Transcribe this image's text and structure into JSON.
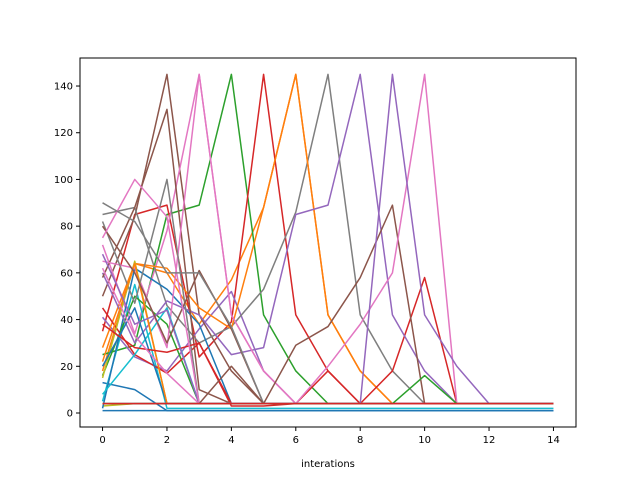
{
  "chart_data": {
    "type": "line",
    "title": "",
    "xlabel": "interations",
    "ylabel": "",
    "xlim": [
      -0.7,
      14.7
    ],
    "ylim": [
      -6,
      152
    ],
    "xticks": [
      0,
      2,
      4,
      6,
      8,
      10,
      12,
      14
    ],
    "yticks": [
      0,
      20,
      40,
      60,
      80,
      100,
      120,
      140
    ],
    "grid": false,
    "legend": "none",
    "series": [
      {
        "color": "#1f77b4",
        "x": [
          0,
          1,
          2,
          3,
          4,
          5,
          6,
          7,
          8,
          9,
          10,
          11,
          12,
          13,
          14
        ],
        "y": [
          13,
          10,
          1,
          1,
          1,
          1,
          1,
          1,
          1,
          1,
          1,
          1,
          1,
          1,
          1
        ]
      },
      {
        "color": "#ff7f0e",
        "x": [
          0,
          1,
          2,
          3,
          4,
          5,
          6,
          7,
          8,
          9,
          10,
          11,
          12,
          13,
          14
        ],
        "y": [
          18,
          64,
          60,
          38,
          57,
          88,
          145,
          42,
          18,
          4,
          4,
          4,
          4,
          4,
          4
        ]
      },
      {
        "color": "#2ca02c",
        "x": [
          0,
          1,
          2,
          3,
          4,
          5,
          6,
          7,
          8,
          9,
          10,
          11,
          12,
          13,
          14
        ],
        "y": [
          25,
          29,
          85,
          89,
          145,
          42,
          18,
          4,
          4,
          4,
          4,
          4,
          4,
          4,
          4
        ]
      },
      {
        "color": "#d62728",
        "x": [
          0,
          1,
          2,
          3,
          4,
          5,
          6,
          7,
          8,
          9,
          10,
          11,
          12,
          13,
          14
        ],
        "y": [
          35,
          85,
          89,
          24,
          39,
          145,
          42,
          18,
          4,
          4,
          4,
          4,
          4,
          4,
          4
        ]
      },
      {
        "color": "#9467bd",
        "x": [
          0,
          1,
          2,
          3,
          4,
          5,
          6,
          7,
          8,
          9,
          10,
          11,
          12,
          13,
          14
        ],
        "y": [
          41,
          24,
          18,
          36,
          52,
          18,
          4,
          4,
          4,
          4,
          4,
          4,
          4,
          4,
          4
        ]
      },
      {
        "color": "#8c564b",
        "x": [
          0,
          1,
          2,
          3,
          4,
          5,
          6,
          7,
          8,
          9,
          10,
          11,
          12,
          13,
          14
        ],
        "y": [
          50,
          84,
          145,
          42,
          18,
          4,
          4,
          4,
          4,
          4,
          4,
          4,
          4,
          4,
          4
        ]
      },
      {
        "color": "#e377c2",
        "x": [
          0,
          1,
          2,
          3,
          4,
          5,
          6,
          7,
          8,
          9,
          10,
          11,
          12,
          13,
          14
        ],
        "y": [
          72,
          34,
          78,
          145,
          42,
          18,
          4,
          4,
          4,
          4,
          4,
          4,
          4,
          4,
          4
        ]
      },
      {
        "color": "#7f7f7f",
        "x": [
          0,
          1,
          2,
          3,
          4,
          5,
          6,
          7,
          8,
          9,
          10,
          11,
          12,
          13,
          14
        ],
        "y": [
          85,
          88,
          46,
          30,
          37,
          53,
          86,
          145,
          42,
          18,
          4,
          4,
          4,
          4,
          4
        ]
      },
      {
        "color": "#bcbd22",
        "x": [
          0,
          1,
          2,
          3,
          4,
          5,
          6,
          7,
          8,
          9,
          10,
          11,
          12,
          13,
          14
        ],
        "y": [
          3,
          4,
          4,
          4,
          4,
          4,
          4,
          4,
          4,
          4,
          4,
          4,
          4,
          4,
          4
        ]
      },
      {
        "color": "#17becf",
        "x": [
          0,
          1,
          2,
          3,
          4,
          5,
          6,
          7,
          8,
          9,
          10,
          11,
          12,
          13,
          14
        ],
        "y": [
          5,
          55,
          2,
          2,
          2,
          2,
          2,
          2,
          2,
          2,
          2,
          2,
          2,
          2,
          2
        ]
      },
      {
        "color": "#1f77b4",
        "x": [
          0,
          1,
          2,
          3,
          4,
          5,
          6,
          7,
          8,
          9,
          10,
          11,
          12,
          13,
          14
        ],
        "y": [
          2,
          62,
          53,
          38,
          4,
          4,
          4,
          4,
          4,
          4,
          4,
          4,
          4,
          4,
          4
        ]
      },
      {
        "color": "#ff7f0e",
        "x": [
          0,
          1,
          2,
          3,
          4,
          5,
          6,
          7,
          8,
          9,
          10,
          11,
          12,
          13,
          14
        ],
        "y": [
          28,
          64,
          62,
          45,
          36,
          88,
          145,
          42,
          18,
          4,
          4,
          4,
          4,
          4,
          4
        ]
      },
      {
        "color": "#2ca02c",
        "x": [
          0,
          1,
          2,
          3,
          4,
          5,
          6,
          7,
          8,
          9,
          10,
          11,
          12,
          13,
          14
        ],
        "y": [
          16,
          50,
          38,
          4,
          4,
          4,
          4,
          4,
          4,
          4,
          4,
          4,
          4,
          4,
          4
        ]
      },
      {
        "color": "#d62728",
        "x": [
          0,
          1,
          2,
          3,
          4,
          5,
          6,
          7,
          8,
          9,
          10,
          11,
          12,
          13,
          14
        ],
        "y": [
          45,
          25,
          17,
          30,
          3,
          3,
          4,
          18,
          4,
          18,
          58,
          4,
          4,
          4,
          4
        ]
      },
      {
        "color": "#9467bd",
        "x": [
          0,
          1,
          2,
          3,
          4,
          5,
          6,
          7,
          8,
          9,
          10,
          11,
          12,
          13,
          14
        ],
        "y": [
          60,
          30,
          48,
          42,
          25,
          28,
          85,
          89,
          145,
          42,
          18,
          4,
          4,
          4,
          4
        ]
      },
      {
        "color": "#8c564b",
        "x": [
          0,
          1,
          2,
          3,
          4,
          5,
          6,
          7,
          8,
          9,
          10,
          11,
          12,
          13,
          14
        ],
        "y": [
          58,
          88,
          130,
          10,
          4,
          4,
          4,
          4,
          4,
          4,
          4,
          4,
          4,
          4,
          4
        ]
      },
      {
        "color": "#e377c2",
        "x": [
          0,
          1,
          2,
          3,
          4,
          5,
          6,
          7,
          8,
          9,
          10,
          11,
          12,
          13,
          14
        ],
        "y": [
          65,
          62,
          28,
          145,
          42,
          18,
          4,
          4,
          4,
          4,
          4,
          4,
          4,
          4,
          4
        ]
      },
      {
        "color": "#7f7f7f",
        "x": [
          0,
          1,
          2,
          3,
          4,
          5,
          6,
          7,
          8,
          9,
          10,
          11,
          12,
          13,
          14
        ],
        "y": [
          82,
          47,
          100,
          4,
          4,
          4,
          4,
          4,
          4,
          4,
          4,
          4,
          4,
          4,
          4
        ]
      },
      {
        "color": "#bcbd22",
        "x": [
          0,
          1,
          2,
          3,
          4,
          5,
          6,
          7,
          8,
          9,
          10,
          11,
          12,
          13,
          14
        ],
        "y": [
          15,
          65,
          4,
          4,
          4,
          4,
          4,
          4,
          4,
          4,
          4,
          4,
          4,
          4,
          4
        ]
      },
      {
        "color": "#17becf",
        "x": [
          0,
          1,
          2,
          3,
          4,
          5,
          6,
          7,
          8,
          9,
          10,
          11,
          12,
          13,
          14
        ],
        "y": [
          8,
          25,
          45,
          4,
          4,
          4,
          4,
          4,
          4,
          4,
          4,
          4,
          4,
          4,
          4
        ]
      },
      {
        "color": "#1f77b4",
        "x": [
          0,
          1,
          2,
          3,
          4,
          5,
          6,
          7,
          8,
          9,
          10,
          11,
          12,
          13,
          14
        ],
        "y": [
          20,
          45,
          4,
          4,
          4,
          4,
          4,
          4,
          4,
          4,
          4,
          4,
          4,
          4,
          4
        ]
      },
      {
        "color": "#ff7f0e",
        "x": [
          0,
          1,
          2,
          3,
          4,
          5,
          6,
          7,
          8,
          9,
          10,
          11,
          12,
          13,
          14
        ],
        "y": [
          22,
          64,
          4,
          4,
          4,
          4,
          4,
          4,
          4,
          4,
          4,
          4,
          4,
          4,
          4
        ]
      },
      {
        "color": "#d62728",
        "x": [
          0,
          1,
          2,
          3,
          4,
          5,
          6,
          7,
          8,
          9,
          10,
          11,
          12,
          13,
          14
        ],
        "y": [
          38,
          28,
          26,
          30,
          4,
          4,
          4,
          4,
          4,
          4,
          4,
          4,
          4,
          4,
          4
        ]
      },
      {
        "color": "#9467bd",
        "x": [
          0,
          1,
          2,
          3,
          4,
          5,
          6,
          7,
          8,
          9,
          10,
          11,
          12,
          13,
          14
        ],
        "y": [
          68,
          38,
          44,
          4,
          4,
          4,
          4,
          4,
          4,
          4,
          4,
          4,
          4,
          4,
          4
        ]
      },
      {
        "color": "#8c564b",
        "x": [
          0,
          1,
          2,
          3,
          4,
          5,
          6,
          7,
          8,
          9,
          10,
          11,
          12,
          13,
          14
        ],
        "y": [
          80,
          60,
          30,
          61,
          36,
          4,
          4,
          4,
          4,
          4,
          4,
          4,
          4,
          4,
          4
        ]
      },
      {
        "color": "#e377c2",
        "x": [
          0,
          1,
          2,
          3,
          4,
          5,
          6,
          7,
          8,
          9,
          10,
          11,
          12,
          13,
          14
        ],
        "y": [
          75,
          100,
          84,
          4,
          4,
          4,
          4,
          4,
          4,
          4,
          4,
          4,
          4,
          4,
          4
        ]
      },
      {
        "color": "#7f7f7f",
        "x": [
          0,
          1,
          2,
          3,
          4,
          5,
          6,
          7,
          8,
          9,
          10,
          11,
          12,
          13,
          14
        ],
        "y": [
          90,
          82,
          60,
          60,
          37,
          4,
          4,
          4,
          4,
          4,
          4,
          4,
          4,
          4,
          4
        ]
      },
      {
        "color": "#e377c2",
        "x": [
          0,
          1,
          2,
          3,
          4,
          5,
          6,
          7,
          8,
          9,
          10,
          11,
          12,
          13,
          14
        ],
        "y": [
          62,
          33,
          17,
          4,
          4,
          4,
          4,
          4,
          4,
          4,
          4,
          4,
          4,
          4,
          4
        ]
      },
      {
        "color": "#8c564b",
        "x": [
          0,
          1,
          2,
          3,
          4,
          5,
          6,
          7,
          8,
          9,
          10,
          11,
          12,
          13,
          14
        ],
        "y": [
          4,
          4,
          4,
          4,
          20,
          4,
          29,
          37,
          58,
          89,
          4,
          4,
          4,
          4,
          4
        ]
      },
      {
        "color": "#e377c2",
        "x": [
          0,
          1,
          2,
          3,
          4,
          5,
          6,
          7,
          8,
          9,
          10,
          11,
          12,
          13,
          14
        ],
        "y": [
          4,
          4,
          4,
          4,
          4,
          4,
          4,
          20,
          38,
          60,
          145,
          4,
          4,
          4,
          4
        ]
      },
      {
        "color": "#9467bd",
        "x": [
          0,
          1,
          2,
          3,
          4,
          5,
          6,
          7,
          8,
          9,
          10,
          11,
          12,
          13,
          14
        ],
        "y": [
          4,
          4,
          4,
          4,
          4,
          4,
          4,
          4,
          4,
          145,
          42,
          20,
          4,
          4,
          4
        ]
      },
      {
        "color": "#2ca02c",
        "x": [
          0,
          1,
          2,
          3,
          4,
          5,
          6,
          7,
          8,
          9,
          10,
          11,
          12,
          13,
          14
        ],
        "y": [
          4,
          4,
          4,
          4,
          4,
          4,
          4,
          4,
          4,
          4,
          16,
          4,
          4,
          4,
          4
        ]
      },
      {
        "color": "#d62728",
        "x": [
          0,
          1,
          2,
          3,
          4,
          5,
          6,
          7,
          8,
          9,
          10,
          11,
          12,
          13,
          14
        ],
        "y": [
          4,
          4,
          4,
          4,
          4,
          4,
          4,
          4,
          4,
          4,
          4,
          4,
          4,
          4,
          4
        ]
      },
      {
        "color": "#1f77b4",
        "x": [
          0,
          1,
          2,
          3,
          4,
          5,
          6,
          7,
          8,
          9,
          10,
          11,
          12,
          13,
          14
        ],
        "y": [
          1,
          1,
          1,
          1,
          1,
          1,
          1,
          1,
          1,
          1,
          1,
          1,
          1,
          1,
          1
        ]
      }
    ]
  }
}
